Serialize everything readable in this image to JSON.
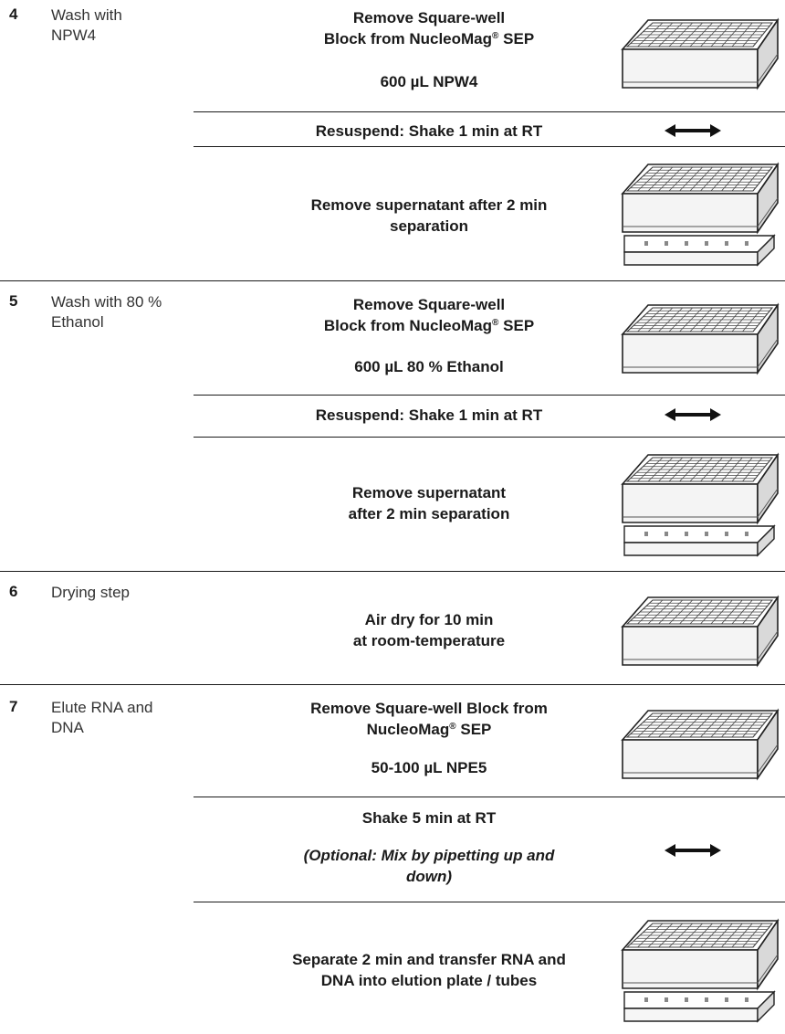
{
  "steps": [
    {
      "number": "4",
      "name_lines": [
        "Wash with",
        "NPW4"
      ],
      "remove_lines": [
        "Remove Square-well",
        "Block from NucleoMag",
        "SEP"
      ],
      "add": "600 µL NPW4",
      "resuspend": "Resuspend: Shake 1 min at RT",
      "supernatant_lines": [
        "Remove supernatant after 2 min",
        "separation"
      ]
    },
    {
      "number": "5",
      "name_lines": [
        "Wash with 80 %",
        "Ethanol"
      ],
      "remove_lines": [
        "Remove Square-well",
        "Block from NucleoMag",
        "SEP"
      ],
      "add": "600 µL 80 % Ethanol",
      "resuspend": "Resuspend: Shake 1 min at RT",
      "supernatant_lines": [
        "Remove supernatant",
        "after 2 min separation"
      ]
    },
    {
      "number": "6",
      "name_lines": [
        "Drying step"
      ],
      "dry_lines": [
        "Air dry for 10 min",
        "at room-temperature"
      ]
    },
    {
      "number": "7",
      "name_lines": [
        "Elute RNA and",
        "DNA"
      ],
      "remove_lines": [
        "Remove Square-well Block from",
        "NucleoMag",
        "SEP"
      ],
      "add": "50-100 µL NPE5",
      "shake": "Shake 5 min at RT",
      "optional_lines": [
        "(Optional: Mix by pipetting up and",
        "down)"
      ],
      "separate_lines": [
        "Separate 2 min and transfer RNA and",
        "DNA into elution plate / tubes"
      ]
    }
  ],
  "registered_mark": "®",
  "icons": {
    "plate": "square-well-block-icon",
    "plate_on_magnet": "plate-on-magnetic-separator-icon",
    "shake": "double-arrow-shake-icon"
  },
  "colors": {
    "text": "#1a1a1a",
    "rule": "#1a1a1a"
  }
}
